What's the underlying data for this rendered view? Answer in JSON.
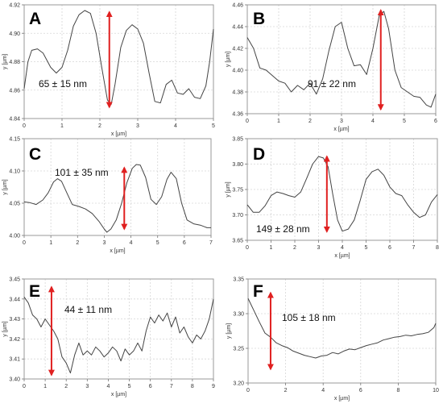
{
  "chart_data": [
    {
      "type": "line",
      "panel_label": "A",
      "xlabel": "x [µm]",
      "ylabel": "y [µm]",
      "xlim": [
        0,
        5
      ],
      "ylim": [
        4.84,
        4.92
      ],
      "xticks": [
        0,
        1,
        2,
        3,
        4,
        5
      ],
      "yticks": [
        4.84,
        4.86,
        4.88,
        4.9,
        4.92
      ],
      "xtick_labels": [
        "0",
        "1",
        "2",
        "3",
        "4",
        "5"
      ],
      "ytick_labels": [
        "4.84",
        "4.86",
        "4.88",
        "4.90",
        "4.92"
      ],
      "annotation": "65 ± 15 nm",
      "arrow": {
        "x": 2.25,
        "y_from": 4.848,
        "y_to": 4.915
      },
      "series": [
        {
          "x": [
            0,
            0.1,
            0.2,
            0.35,
            0.5,
            0.7,
            0.85,
            1.0,
            1.15,
            1.3,
            1.45,
            1.6,
            1.75,
            1.9,
            2.05,
            2.2,
            2.3,
            2.4,
            2.55,
            2.7,
            2.85,
            3.0,
            3.15,
            3.3,
            3.45,
            3.6,
            3.75,
            3.9,
            4.05,
            4.2,
            4.35,
            4.5,
            4.65,
            4.8,
            4.9,
            5.0
          ],
          "values": [
            4.861,
            4.88,
            4.888,
            4.889,
            4.886,
            4.876,
            4.872,
            4.876,
            4.888,
            4.905,
            4.913,
            4.916,
            4.914,
            4.9,
            4.876,
            4.853,
            4.85,
            4.864,
            4.89,
            4.902,
            4.906,
            4.903,
            4.893,
            4.872,
            4.852,
            4.851,
            4.864,
            4.867,
            4.858,
            4.857,
            4.861,
            4.855,
            4.854,
            4.863,
            4.88,
            4.903
          ]
        }
      ]
    },
    {
      "type": "line",
      "panel_label": "B",
      "xlabel": "x [µm]",
      "ylabel": "y [µm]",
      "xlim": [
        0,
        6
      ],
      "ylim": [
        4.36,
        4.46
      ],
      "xticks": [
        0,
        1,
        2,
        3,
        4,
        5,
        6
      ],
      "yticks": [
        4.36,
        4.38,
        4.4,
        4.42,
        4.44,
        4.46
      ],
      "xtick_labels": [
        "0",
        "1",
        "2",
        "3",
        "4",
        "5",
        "6"
      ],
      "ytick_labels": [
        "4.36",
        "4.38",
        "4.40",
        "4.42",
        "4.44",
        "4.46"
      ],
      "annotation": "91 ± 22 nm",
      "arrow": {
        "x": 4.25,
        "y_from": 4.364,
        "y_to": 4.455
      },
      "series": [
        {
          "x": [
            0,
            0.2,
            0.4,
            0.6,
            0.8,
            1.0,
            1.2,
            1.4,
            1.6,
            1.8,
            2.0,
            2.2,
            2.4,
            2.6,
            2.8,
            3.0,
            3.2,
            3.4,
            3.6,
            3.8,
            4.0,
            4.2,
            4.35,
            4.5,
            4.7,
            4.9,
            5.1,
            5.3,
            5.5,
            5.7,
            5.85,
            6.0
          ],
          "values": [
            4.43,
            4.42,
            4.402,
            4.4,
            4.395,
            4.39,
            4.388,
            4.38,
            4.386,
            4.382,
            4.388,
            4.378,
            4.392,
            4.418,
            4.44,
            4.444,
            4.42,
            4.404,
            4.405,
            4.396,
            4.42,
            4.45,
            4.454,
            4.438,
            4.4,
            4.384,
            4.38,
            4.376,
            4.375,
            4.368,
            4.366,
            4.378
          ]
        }
      ]
    },
    {
      "type": "line",
      "panel_label": "C",
      "xlabel": "x [µm]",
      "ylabel": "y [µm]",
      "xlim": [
        0,
        7
      ],
      "ylim": [
        4.0,
        4.15
      ],
      "xticks": [
        0,
        1,
        2,
        3,
        4,
        5,
        6,
        7
      ],
      "yticks": [
        4.0,
        4.05,
        4.1,
        4.15
      ],
      "xtick_labels": [
        "0",
        "1",
        "2",
        "3",
        "4",
        "5",
        "6",
        "7"
      ],
      "ytick_labels": [
        "4.00",
        "4.05",
        "4.10",
        "4.15"
      ],
      "annotation": "101 ± 35 nm",
      "arrow": {
        "x": 3.75,
        "y_from": 4.01,
        "y_to": 4.105
      },
      "series": [
        {
          "x": [
            0,
            0.2,
            0.45,
            0.7,
            0.9,
            1.1,
            1.25,
            1.4,
            1.6,
            1.8,
            2.05,
            2.3,
            2.55,
            2.8,
            3.0,
            3.1,
            3.25,
            3.45,
            3.65,
            3.85,
            4.05,
            4.2,
            4.35,
            4.55,
            4.75,
            4.95,
            5.15,
            5.35,
            5.5,
            5.7,
            5.9,
            6.1,
            6.35,
            6.6,
            6.85,
            7.0
          ],
          "values": [
            4.052,
            4.051,
            4.048,
            4.055,
            4.066,
            4.083,
            4.088,
            4.084,
            4.066,
            4.048,
            4.045,
            4.041,
            4.034,
            4.022,
            4.01,
            4.005,
            4.01,
            4.024,
            4.05,
            4.082,
            4.104,
            4.11,
            4.109,
            4.09,
            4.056,
            4.048,
            4.06,
            4.087,
            4.098,
            4.088,
            4.05,
            4.024,
            4.018,
            4.016,
            4.012,
            4.012
          ]
        }
      ]
    },
    {
      "type": "line",
      "panel_label": "D",
      "xlabel": "x [µm]",
      "ylabel": "y [µm]",
      "xlim": [
        0,
        8
      ],
      "ylim": [
        3.65,
        3.85
      ],
      "xticks": [
        0,
        1,
        2,
        3,
        4,
        5,
        6,
        7,
        8
      ],
      "yticks": [
        3.65,
        3.7,
        3.75,
        3.8,
        3.85
      ],
      "xtick_labels": [
        "0",
        "1",
        "2",
        "3",
        "4",
        "5",
        "6",
        "7",
        "8"
      ],
      "ytick_labels": [
        "3.65",
        "3.70",
        "3.75",
        "3.80",
        "3.85"
      ],
      "annotation": "149 ± 28 nm",
      "arrow": {
        "x": 3.35,
        "y_from": 3.667,
        "y_to": 3.815
      },
      "series": [
        {
          "x": [
            0,
            0.25,
            0.5,
            0.75,
            1.0,
            1.25,
            1.5,
            1.75,
            2.0,
            2.25,
            2.5,
            2.75,
            3.0,
            3.2,
            3.4,
            3.6,
            3.8,
            4.0,
            4.25,
            4.5,
            4.75,
            5.0,
            5.25,
            5.5,
            5.75,
            6.0,
            6.25,
            6.5,
            6.75,
            7.0,
            7.25,
            7.5,
            7.75,
            8.0
          ],
          "values": [
            3.72,
            3.705,
            3.705,
            3.718,
            3.738,
            3.745,
            3.742,
            3.738,
            3.735,
            3.745,
            3.772,
            3.8,
            3.815,
            3.812,
            3.795,
            3.74,
            3.69,
            3.668,
            3.672,
            3.69,
            3.728,
            3.77,
            3.785,
            3.79,
            3.778,
            3.755,
            3.742,
            3.738,
            3.72,
            3.705,
            3.695,
            3.7,
            3.725,
            3.74
          ]
        }
      ]
    },
    {
      "type": "line",
      "panel_label": "E",
      "xlabel": "x [µm]",
      "ylabel": "y [µm]",
      "xlim": [
        0,
        9
      ],
      "ylim": [
        3.4,
        3.45
      ],
      "xticks": [
        0,
        1,
        2,
        3,
        4,
        5,
        6,
        7,
        8,
        9
      ],
      "yticks": [
        3.4,
        3.41,
        3.42,
        3.43,
        3.44,
        3.45
      ],
      "xtick_labels": [
        "0",
        "1",
        "2",
        "3",
        "4",
        "5",
        "6",
        "7",
        "8",
        "9"
      ],
      "ytick_labels": [
        "3.40",
        "3.41",
        "3.42",
        "3.43",
        "3.44",
        "3.45"
      ],
      "annotation": "44 ± 11 nm",
      "arrow": {
        "x": 1.3,
        "y_from": 3.402,
        "y_to": 3.446
      },
      "series": [
        {
          "x": [
            0,
            0.2,
            0.4,
            0.6,
            0.8,
            1.0,
            1.2,
            1.4,
            1.6,
            1.8,
            2.0,
            2.2,
            2.4,
            2.6,
            2.8,
            3.0,
            3.2,
            3.4,
            3.6,
            3.8,
            4.0,
            4.2,
            4.4,
            4.6,
            4.8,
            5.0,
            5.2,
            5.4,
            5.6,
            5.8,
            6.0,
            6.2,
            6.4,
            6.6,
            6.8,
            7.0,
            7.2,
            7.4,
            7.6,
            7.8,
            8.0,
            8.2,
            8.4,
            8.6,
            8.8,
            9.0
          ],
          "values": [
            3.441,
            3.438,
            3.432,
            3.43,
            3.426,
            3.43,
            3.427,
            3.424,
            3.42,
            3.411,
            3.408,
            3.403,
            3.412,
            3.418,
            3.412,
            3.414,
            3.412,
            3.416,
            3.414,
            3.411,
            3.413,
            3.416,
            3.414,
            3.409,
            3.415,
            3.412,
            3.414,
            3.418,
            3.414,
            3.424,
            3.431,
            3.428,
            3.432,
            3.429,
            3.433,
            3.426,
            3.431,
            3.423,
            3.426,
            3.421,
            3.418,
            3.422,
            3.42,
            3.424,
            3.43,
            3.44
          ]
        }
      ]
    },
    {
      "type": "line",
      "panel_label": "F",
      "xlabel": "x [µm]",
      "ylabel": "y [µm]",
      "xlim": [
        0,
        10
      ],
      "ylim": [
        3.2,
        3.35
      ],
      "xticks": [
        0,
        2,
        4,
        6,
        8,
        10
      ],
      "yticks": [
        3.2,
        3.25,
        3.3,
        3.35
      ],
      "xtick_labels": [
        "0",
        "2",
        "4",
        "6",
        "8",
        "10"
      ],
      "ytick_labels": [
        "3.20",
        "3.25",
        "3.30",
        "3.35"
      ],
      "annotation": "105 ± 18 nm",
      "arrow": {
        "x": 1.2,
        "y_from": 3.22,
        "y_to": 3.33
      },
      "series": [
        {
          "x": [
            0,
            0.3,
            0.6,
            0.9,
            1.2,
            1.5,
            1.8,
            2.1,
            2.4,
            2.7,
            3.0,
            3.3,
            3.6,
            3.9,
            4.2,
            4.5,
            4.8,
            5.1,
            5.4,
            5.7,
            6.0,
            6.3,
            6.6,
            6.9,
            7.2,
            7.5,
            7.8,
            8.1,
            8.4,
            8.7,
            9.0,
            9.3,
            9.6,
            9.9,
            10.0
          ],
          "values": [
            3.322,
            3.305,
            3.288,
            3.272,
            3.266,
            3.258,
            3.254,
            3.251,
            3.246,
            3.243,
            3.24,
            3.238,
            3.236,
            3.239,
            3.24,
            3.244,
            3.242,
            3.246,
            3.249,
            3.248,
            3.251,
            3.254,
            3.256,
            3.258,
            3.262,
            3.264,
            3.266,
            3.267,
            3.269,
            3.268,
            3.27,
            3.271,
            3.273,
            3.28,
            3.286
          ]
        }
      ]
    }
  ]
}
